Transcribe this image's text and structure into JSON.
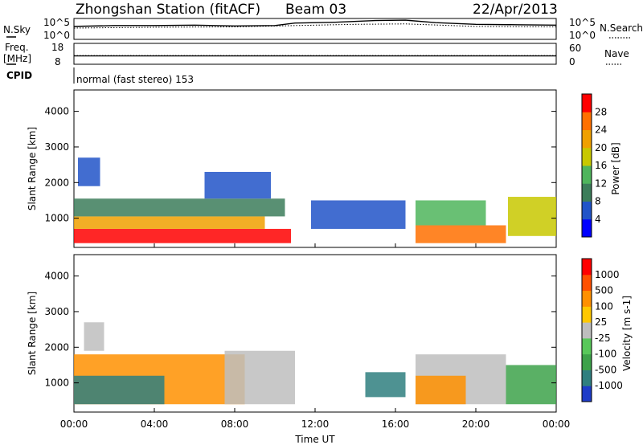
{
  "header": {
    "station": "Zhongshan Station (fitACF)",
    "beam": "Beam 03",
    "date": "22/Apr/2013",
    "cpid_label": "CPID",
    "cpid_text": "normal (fast stereo) 153"
  },
  "strips": {
    "nsky_label": "N.Sky",
    "nsearch_label": "N.Search",
    "nsky_ticks": [
      "10^5",
      "10^0"
    ],
    "nsearch_ticks": [
      "10^5",
      "10^0"
    ],
    "freq_label_1": "Freq.",
    "freq_label_2": "[MHz]",
    "freq_ticks": [
      "18",
      "8"
    ],
    "nave_label": "Nave",
    "nave_ticks": [
      "60",
      "0"
    ],
    "nsky_series": [
      {
        "t": 0,
        "v": 3.1
      },
      {
        "t": 2,
        "v": 3.3
      },
      {
        "t": 4,
        "v": 3.3
      },
      {
        "t": 6,
        "v": 3.4
      },
      {
        "t": 8,
        "v": 3.2
      },
      {
        "t": 10,
        "v": 3.3
      },
      {
        "t": 11,
        "v": 3.9
      },
      {
        "t": 13,
        "v": 4.1
      },
      {
        "t": 15,
        "v": 4.5
      },
      {
        "t": 16.5,
        "v": 4.6
      },
      {
        "t": 18,
        "v": 4.0
      },
      {
        "t": 20,
        "v": 3.6
      },
      {
        "t": 22,
        "v": 3.5
      },
      {
        "t": 24,
        "v": 3.4
      }
    ],
    "nsearch_series": [
      {
        "t": 0,
        "v": 2.7
      },
      {
        "t": 4,
        "v": 2.9
      },
      {
        "t": 8,
        "v": 3.0
      },
      {
        "t": 11,
        "v": 3.3
      },
      {
        "t": 14,
        "v": 3.6
      },
      {
        "t": 16.5,
        "v": 3.7
      },
      {
        "t": 20,
        "v": 3.1
      },
      {
        "t": 24,
        "v": 3.0
      }
    ],
    "freq_mhz": 12,
    "nave_value": 25
  },
  "chart_data": [
    {
      "type": "heatmap",
      "name": "Power",
      "ylabel": "Slant Range [km]",
      "ylim": [
        180,
        4600
      ],
      "yticks": [
        1000,
        2000,
        3000,
        4000
      ],
      "colorbar_label": "Power [dB]",
      "colorbar_ticks": [
        "4",
        "8",
        "12",
        "16",
        "20",
        "24",
        "28"
      ],
      "colors": [
        "#0000ff",
        "#2154c8",
        "#3c7d5a",
        "#4fb55c",
        "#c8c800",
        "#f0a000",
        "#ff7000",
        "#ff0000"
      ],
      "bands": [
        {
          "t0": 0.0,
          "t1": 10.8,
          "r0": 300,
          "r1": 700,
          "v": 7
        },
        {
          "t0": 0.0,
          "t1": 9.5,
          "r0": 700,
          "r1": 1050,
          "v": 5
        },
        {
          "t0": 0.0,
          "t1": 10.5,
          "r0": 1050,
          "r1": 1550,
          "v": 2
        },
        {
          "t0": 0.2,
          "t1": 1.3,
          "r0": 1900,
          "r1": 2700,
          "v": 1
        },
        {
          "t0": 6.5,
          "t1": 9.8,
          "r0": 1550,
          "r1": 2300,
          "v": 1
        },
        {
          "t0": 11.8,
          "t1": 16.5,
          "r0": 700,
          "r1": 1500,
          "v": 1
        },
        {
          "t0": 17.0,
          "t1": 21.5,
          "r0": 300,
          "r1": 800,
          "v": 6
        },
        {
          "t0": 17.0,
          "t1": 20.5,
          "r0": 800,
          "r1": 1500,
          "v": 3
        },
        {
          "t0": 21.6,
          "t1": 24.0,
          "r0": 500,
          "r1": 1600,
          "v": 4
        }
      ]
    },
    {
      "type": "heatmap",
      "name": "Velocity",
      "ylabel": "Slant Range [km]",
      "ylim": [
        180,
        4600
      ],
      "yticks": [
        1000,
        2000,
        3000,
        4000
      ],
      "colorbar_label": "Velocity [m s-1]",
      "colorbar_ticks": [
        "1000",
        "500",
        "100",
        "25",
        "-25",
        "-100",
        "-500",
        "-1000"
      ],
      "colors": [
        "#1e3cc8",
        "#2f7f7f",
        "#3da24a",
        "#58c85a",
        "#bebebe",
        "#ffc800",
        "#ff9000",
        "#ff5000",
        "#ff0000"
      ],
      "bands": [
        {
          "t0": 0.0,
          "t1": 8.5,
          "r0": 400,
          "r1": 1800,
          "v": 6
        },
        {
          "t0": 0.0,
          "t1": 4.5,
          "r0": 400,
          "r1": 1200,
          "v": 1
        },
        {
          "t0": 0.5,
          "t1": 1.5,
          "r0": 1900,
          "r1": 2700,
          "v": 4
        },
        {
          "t0": 7.5,
          "t1": 11.0,
          "r0": 400,
          "r1": 1900,
          "v": 4
        },
        {
          "t0": 14.5,
          "t1": 16.5,
          "r0": 600,
          "r1": 1300,
          "v": 1
        },
        {
          "t0": 17.0,
          "t1": 21.5,
          "r0": 400,
          "r1": 1800,
          "v": 4
        },
        {
          "t0": 17.0,
          "t1": 19.5,
          "r0": 400,
          "r1": 1200,
          "v": 6
        },
        {
          "t0": 21.5,
          "t1": 24.0,
          "r0": 400,
          "r1": 1500,
          "v": 2
        }
      ]
    }
  ],
  "time_axis": {
    "label": "Time UT",
    "ticks": [
      "00:00",
      "04:00",
      "08:00",
      "12:00",
      "16:00",
      "20:00",
      "00:00"
    ]
  }
}
